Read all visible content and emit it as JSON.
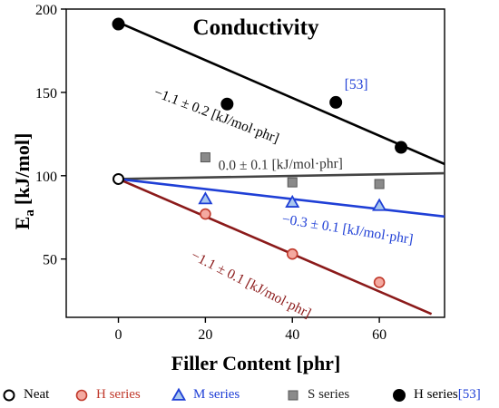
{
  "chart_data": {
    "type": "scatter",
    "title": "Conductivity",
    "xlabel": "Filler Content [phr]",
    "ylabel_main": "E",
    "ylabel_sub": "a",
    "ylabel_unit": "[kJ/mol]",
    "xlim": [
      -12,
      75
    ],
    "ylim": [
      15,
      200
    ],
    "xticks": [
      0,
      20,
      40,
      60
    ],
    "yticks": [
      50,
      100,
      150,
      200
    ],
    "grid": false,
    "legend_position": "bottom",
    "series": [
      {
        "name": "Neat",
        "marker": "circle-open",
        "color": "#000000",
        "fill": "#ffffff",
        "x": [
          0
        ],
        "y": [
          98
        ]
      },
      {
        "name": "H series",
        "marker": "circle",
        "color": "#c0392b",
        "fill": "#f4a9a0",
        "name_color": "#c0392b",
        "x": [
          20,
          40,
          60
        ],
        "y": [
          77,
          53,
          36
        ]
      },
      {
        "name": "M series",
        "marker": "triangle",
        "color": "#1f3fd6",
        "fill": "#a9c7ee",
        "name_color": "#1f3fd6",
        "x": [
          20,
          40,
          60
        ],
        "y": [
          86,
          84,
          82
        ]
      },
      {
        "name": "S series",
        "marker": "square",
        "color": "#555555",
        "fill": "#8a8a8a",
        "name_color": "#222222",
        "x": [
          20,
          40,
          60
        ],
        "y": [
          111,
          96,
          95
        ]
      },
      {
        "name": "H series",
        "name_suffix": "[53]",
        "marker": "circle-filled",
        "color": "#000000",
        "fill": "#000000",
        "name_color": "#000000",
        "suffix_color": "#1f3fd6",
        "x": [
          0,
          25,
          50,
          65
        ],
        "y": [
          191,
          143,
          144,
          117
        ]
      }
    ],
    "fit_lines": [
      {
        "color": "#000000",
        "x": [
          0,
          75
        ],
        "y": [
          192,
          107
        ]
      },
      {
        "color": "#444444",
        "x": [
          0,
          75
        ],
        "y": [
          98,
          101.5
        ]
      },
      {
        "color": "#1f3fd6",
        "x": [
          0,
          75
        ],
        "y": [
          98,
          75.5
        ]
      },
      {
        "color": "#8b1a1a",
        "x": [
          0,
          72
        ],
        "y": [
          98,
          17
        ]
      }
    ],
    "annotations": [
      {
        "text": "−1.1 ± 0.2 [kJ/mol·phr]",
        "color": "#000000",
        "x": 8,
        "y": 148,
        "angle": 21
      },
      {
        "text": "[53]",
        "color": "#1f3fd6",
        "x": 52,
        "y": 152,
        "angle": 0
      },
      {
        "text": "0.0 ± 0.1 [kJ/mol·phr]",
        "color": "#333333",
        "x": 23,
        "y": 103.5,
        "angle": -1
      },
      {
        "text": "−0.3 ± 0.1 [kJ/mol·phr]",
        "color": "#1f3fd6",
        "x": 37.5,
        "y": 71.5,
        "angle": 9
      },
      {
        "text": "−1.1 ± 0.1 [kJ/mol·phr]",
        "color": "#8b1a1a",
        "x": 16.5,
        "y": 50.5,
        "angle": 27
      }
    ]
  }
}
